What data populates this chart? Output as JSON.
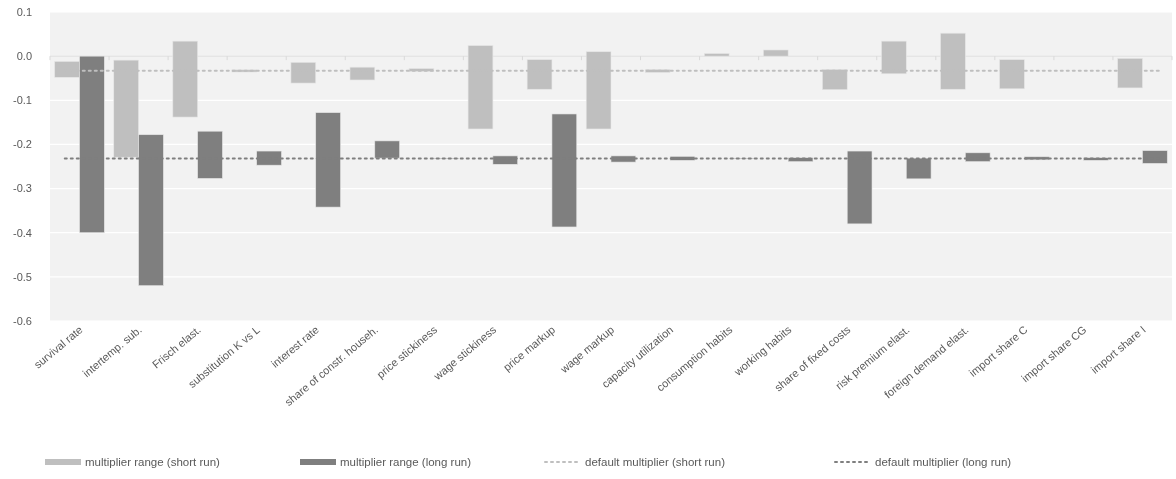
{
  "chart_data": {
    "type": "bar",
    "categories": [
      "survival rate",
      "intertemp. sub.",
      "Frisch elast.",
      "substitution K vs L",
      "interest rate",
      "share of constr. househ.",
      "price stickiness",
      "wage stickiness",
      "price markup",
      "wage markup",
      "capacity utilization",
      "consumption habits",
      "working habits",
      "share of fixed costs",
      "risk premium elast.",
      "foreign demand elast.",
      "import share C",
      "import share CG",
      "import share I"
    ],
    "series": [
      {
        "name": "multiplier range (short run)",
        "color": "#bfbfbf",
        "base": [
          -0.012,
          -0.009,
          0.034,
          -0.031,
          -0.014,
          -0.025,
          -0.028,
          0.024,
          -0.008,
          0.01,
          -0.03,
          0.006,
          0.014,
          -0.03,
          0.034,
          0.052,
          -0.008,
          null,
          -0.005
        ],
        "values": [
          -0.036,
          -0.22,
          -0.172,
          -0.005,
          -0.047,
          -0.029,
          -0.007,
          -0.189,
          -0.067,
          -0.175,
          -0.007,
          -0.006,
          -0.014,
          -0.046,
          -0.074,
          -0.127,
          -0.066,
          null,
          -0.067
        ]
      },
      {
        "name": "multiplier range (long run)",
        "color": "#7f7f7f",
        "base": [
          0,
          -0.178,
          -0.17,
          -0.215,
          -0.128,
          -0.192,
          -0.231,
          -0.226,
          -0.131,
          -0.226,
          -0.227,
          -0.231,
          -0.23,
          -0.215,
          -0.231,
          -0.219,
          -0.228,
          -0.23,
          -0.214
        ],
        "values": [
          -0.4,
          -0.342,
          -0.107,
          -0.032,
          -0.214,
          -0.039,
          -0.002,
          -0.019,
          -0.256,
          -0.014,
          -0.009,
          -0.002,
          -0.009,
          -0.165,
          -0.047,
          -0.02,
          -0.007,
          -0.006,
          -0.029
        ]
      }
    ],
    "ref_lines": [
      {
        "axis": "y",
        "value": -0.033,
        "label": "default multiplier (short run)",
        "color": "#bfbfbf",
        "line_style": "dotted"
      },
      {
        "axis": "y",
        "value": -0.232,
        "label": "default multiplier (long run)",
        "color": "#7f7f7f",
        "line_style": "dotted"
      }
    ],
    "ylim": [
      -0.6,
      0.1
    ],
    "yticks": [
      {
        "value": -0.6,
        "label": "-0.6"
      },
      {
        "value": -0.5,
        "label": "-0.5"
      },
      {
        "value": -0.4,
        "label": "-0.4"
      },
      {
        "value": -0.3,
        "label": "-0.3"
      },
      {
        "value": -0.2,
        "label": "-0.2"
      },
      {
        "value": -0.1,
        "label": "-0.1"
      },
      {
        "value": 0,
        "label": "0.0"
      },
      {
        "value": 0.1,
        "label": "0.1"
      }
    ],
    "grid": "y",
    "legend": "bottom"
  }
}
